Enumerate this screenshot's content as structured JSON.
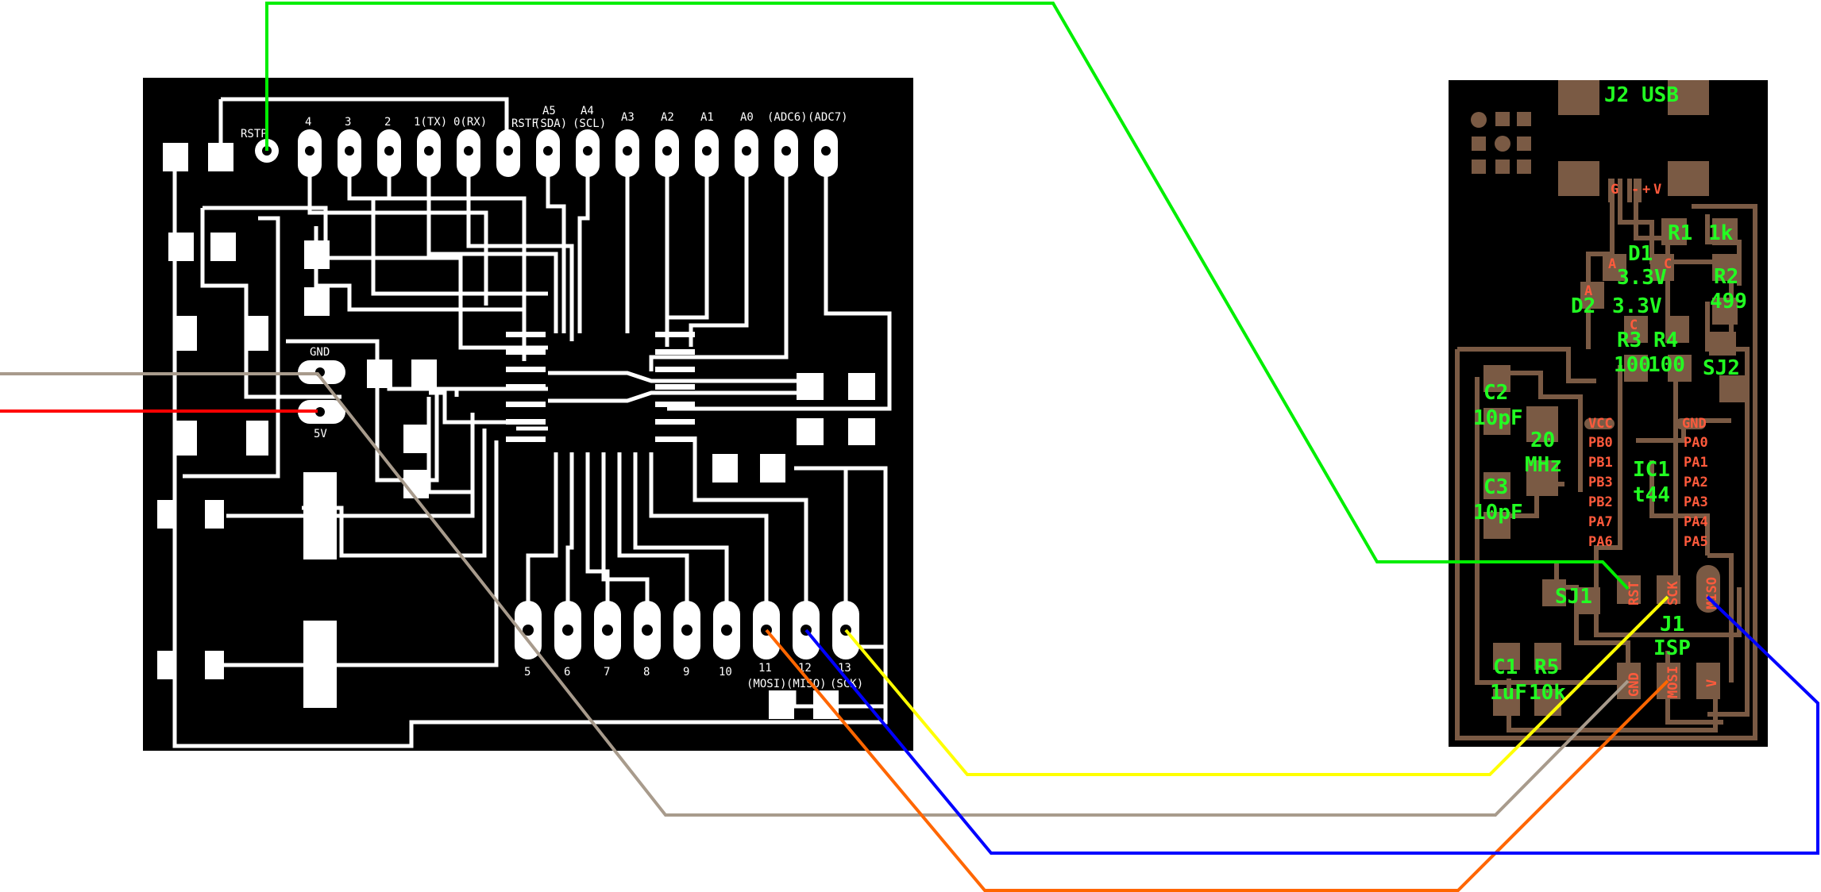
{
  "left_board": {
    "top_labels": [
      "RSTP",
      "4",
      "3",
      "2",
      "1(TX)",
      "0(RX)",
      "RSTF",
      "A5",
      "(SDA)",
      "A4",
      "(SCL)",
      "A3",
      "A2",
      "A1",
      "A0",
      "(ADC6)",
      "(ADC7)"
    ],
    "side_labels": [
      "GND",
      "5V"
    ],
    "bottom_labels": [
      "5",
      "6",
      "7",
      "8",
      "9",
      "10",
      "11",
      "12",
      "13",
      "(MOSI)",
      "(MISO)",
      "(SCK)"
    ]
  },
  "right_board": {
    "green_labels": [
      "J2 USB",
      "R1",
      "1k",
      "D1",
      "3.3V",
      "R2",
      "D2",
      "3.3V",
      "499",
      "R3",
      "R4",
      "100",
      "100",
      "SJ2",
      "C2",
      "10pF",
      "20",
      "MHz",
      "C3",
      "10pF",
      "IC1",
      "t44",
      "SJ1",
      "J1",
      "ISP",
      "C1",
      "R5",
      "1uF",
      "10k"
    ],
    "red_labels": [
      "G",
      "-",
      "+",
      "V",
      "A",
      "C",
      "A",
      "C",
      "VCC",
      "PB0",
      "PB1",
      "PB3",
      "PB2",
      "PA7",
      "PA6",
      "GND",
      "PA0",
      "PA1",
      "PA2",
      "PA3",
      "PA4",
      "PA5",
      "RST",
      "SCK",
      "MISO",
      "GND",
      "MOSI",
      "V"
    ]
  },
  "wires": {
    "colors": [
      "#00ee00",
      "#ff0000",
      "#a89b8c",
      "#ffff00",
      "#ff6600",
      "#0000ff"
    ],
    "names": [
      "reset-wire",
      "vcc-wire",
      "ground-wire",
      "sck-wire",
      "mosi-wire",
      "miso-wire"
    ]
  }
}
